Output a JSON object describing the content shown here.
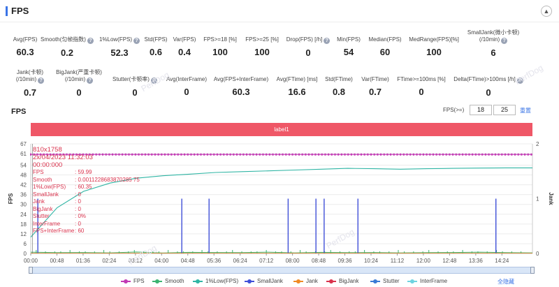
{
  "header": {
    "title": "FPS",
    "collapse_icon": "chevron-up-icon"
  },
  "metrics_row1": [
    {
      "label": "Avg(FPS)",
      "value": "60.3",
      "help": false
    },
    {
      "label": "Smooth(匀帧指数)",
      "value": "0.2",
      "help": true
    },
    {
      "label": "1%Low(FPS)",
      "value": "52.3",
      "help": true
    },
    {
      "label": "Std(FPS)",
      "value": "0.6",
      "help": false
    },
    {
      "label": "Var(FPS)",
      "value": "0.4",
      "help": false
    },
    {
      "label": "FPS>=18 [%]",
      "value": "100",
      "help": false
    },
    {
      "label": "FPS>=25 [%]",
      "value": "100",
      "help": false
    },
    {
      "label": "Drop(FPS) [/h]",
      "value": "0",
      "help": true
    },
    {
      "label": "Min(FPS)",
      "value": "54",
      "help": false
    },
    {
      "label": "Median(FPS)",
      "value": "60",
      "help": false
    },
    {
      "label": "MedRange(FPS)[%]",
      "value": "100",
      "help": false
    },
    {
      "label": "SmallJank(微小卡顿)",
      "label2": "(/10min)",
      "value": "6",
      "help": true
    }
  ],
  "metrics_row2": [
    {
      "label": "Jank(卡顿)",
      "label2": "(/10min)",
      "value": "0.7",
      "help": true
    },
    {
      "label": "BigJank(严重卡顿)",
      "label2": "(/10min)",
      "value": "0",
      "help": true
    },
    {
      "label": "Stutter(卡顿率)",
      "value": "0",
      "help": true
    },
    {
      "label": "Avg(InterFrame)",
      "value": "0",
      "help": false
    },
    {
      "label": "Avg(FPS+InterFrame)",
      "value": "60.3",
      "help": false
    },
    {
      "label": "Avg(FTime) [ms]",
      "value": "16.6",
      "help": false
    },
    {
      "label": "Std(FTime)",
      "value": "0.8",
      "help": false
    },
    {
      "label": "Var(FTime)",
      "value": "0.7",
      "help": false
    },
    {
      "label": "FTime>=100ms [%]",
      "value": "0",
      "help": false
    },
    {
      "label": "Delta(FTime)>100ms [/h]",
      "value": "0",
      "help": true
    }
  ],
  "chart_section": {
    "title": "FPS",
    "range_label": "FPS(>=)",
    "range_low": "18",
    "range_high": "25",
    "reset_label": "重置",
    "label_bar": "label1",
    "hide_all": "全隐藏"
  },
  "tooltip": {
    "resolution": "810x1758",
    "datetime": "2x/04/2023 11:32:03",
    "elapsed": "00:00:000",
    "rows": [
      {
        "k": "FPS",
        "v": ": 59.99"
      },
      {
        "k": "Smooth",
        "v": ": 0.0011228683870285 75"
      },
      {
        "k": "1%Low(FPS)",
        "v": ": 60.35"
      },
      {
        "k": "SmallJank",
        "v": ": 0"
      },
      {
        "k": "Jank",
        "v": ": 0"
      },
      {
        "k": "BigJank",
        "v": ": 0"
      },
      {
        "k": "Stutter",
        "v": ": 0%"
      },
      {
        "k": "InterFrame",
        "v": ": 0"
      },
      {
        "k": "FPS+InterFrame",
        "v": ": 60"
      }
    ]
  },
  "chart_data": {
    "type": "line",
    "ylabel": "FPS",
    "y2label": "Jank",
    "y_ticks": [
      0,
      6,
      12,
      18,
      24,
      30,
      36,
      42,
      48,
      54,
      61,
      67
    ],
    "y2_ticks": [
      0,
      1,
      2
    ],
    "x_ticks": [
      "00:00",
      "00:48",
      "01:36",
      "02:24",
      "03:12",
      "04:00",
      "04:48",
      "05:36",
      "06:24",
      "07:12",
      "08:00",
      "08:48",
      "09:36",
      "10:24",
      "11:12",
      "12:00",
      "12:48",
      "13:36",
      "14:24"
    ],
    "x_range_seconds": [
      0,
      920
    ],
    "ylim": [
      0,
      67
    ],
    "y2lim": [
      0,
      2
    ],
    "series": [
      {
        "name": "FPS",
        "color": "#c23ab4",
        "values": [
          60.5,
          60.5,
          60.5,
          60.5,
          60.5,
          60.5,
          60.5,
          60.5,
          60.5,
          60.5,
          60.5,
          60.5,
          60.5,
          60.5,
          60.5,
          60.5,
          60.5,
          60.5,
          60.5,
          60.5
        ]
      },
      {
        "name": "Smooth",
        "color": "#3cb371",
        "values": [
          0.8,
          0.5,
          0.6,
          0.4,
          0.9,
          0.3,
          0.7,
          0.6,
          0.5,
          0.8,
          0.4,
          0.7,
          0.5,
          0.6,
          0.4,
          0.5,
          0.6,
          0.8,
          0.5,
          0.4
        ]
      },
      {
        "name": "1%Low(FPS)",
        "color": "#2fb5a4",
        "values": [
          10,
          28,
          38,
          43,
          46,
          47.5,
          48.5,
          49.5,
          50,
          50.5,
          51,
          51.5,
          52,
          51.8,
          51.5,
          51.8,
          52,
          52.2,
          52.3,
          52.3
        ]
      },
      {
        "name": "SmallJank",
        "color": "#4050d8",
        "spikes_seconds": [
          13,
          277,
          327,
          472,
          523,
          538,
          600,
          853
        ],
        "spike_level": 1
      },
      {
        "name": "Jank",
        "color": "#f08a24",
        "values": []
      },
      {
        "name": "BigJank",
        "color": "#d9334d",
        "values": []
      },
      {
        "name": "Stutter",
        "color": "#3a7bd5",
        "values": []
      },
      {
        "name": "InterFrame",
        "color": "#6fd3e0",
        "values": []
      }
    ]
  },
  "legend": [
    {
      "name": "FPS",
      "color": "#c23ab4"
    },
    {
      "name": "Smooth",
      "color": "#3cb371"
    },
    {
      "name": "1%Low(FPS)",
      "color": "#2fb5a4"
    },
    {
      "name": "SmallJank",
      "color": "#4050d8"
    },
    {
      "name": "Jank",
      "color": "#f08a24"
    },
    {
      "name": "BigJank",
      "color": "#d9334d"
    },
    {
      "name": "Stutter",
      "color": "#3a7bd5"
    },
    {
      "name": "InterFrame",
      "color": "#6fd3e0"
    }
  ],
  "watermark": "PerfDog"
}
